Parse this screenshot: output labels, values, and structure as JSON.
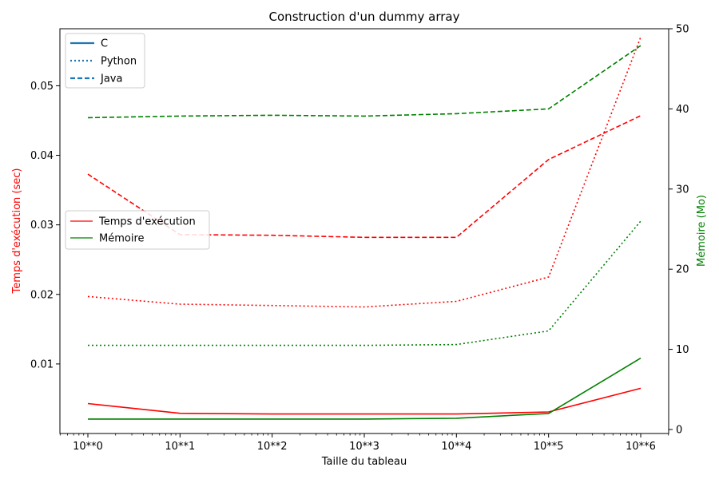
{
  "chart_data": {
    "type": "line",
    "title": "Construction d'un dummy array",
    "xlabel": "Taille du tableau",
    "ylabel_left": "Temps d'exécution (sec)",
    "ylabel_right": "Mémoire (Mo)",
    "x_scale": "log",
    "categories": [
      "10**0",
      "10**1",
      "10**2",
      "10**3",
      "10**4",
      "10**5",
      "10**6"
    ],
    "x": [
      1,
      10,
      100,
      1000,
      10000,
      100000,
      1000000
    ],
    "ylim_left": [
      0.0,
      0.0582
    ],
    "yticks_left": [
      0.01,
      0.02,
      0.03,
      0.04,
      0.05
    ],
    "ytick_labels_left": [
      "0.01",
      "0.02",
      "0.03",
      "0.04",
      "0.05"
    ],
    "ylim_right": [
      -0.5,
      50
    ],
    "yticks_right": [
      0,
      10,
      20,
      30,
      40,
      50
    ],
    "ytick_labels_right": [
      "0",
      "10",
      "20",
      "30",
      "40",
      "50"
    ],
    "colors": {
      "time": "#ff0000",
      "memory": "#008000",
      "legend_lines": "#1f77b4",
      "left_label": "#ff0000",
      "right_label": "#008000"
    },
    "legend_styles": {
      "placement": "upper-left",
      "entries": [
        {
          "label": "C",
          "style": "solid"
        },
        {
          "label": "Python",
          "style": "dotted"
        },
        {
          "label": "Java",
          "style": "dashed"
        }
      ]
    },
    "legend_metrics": {
      "placement": "center-left",
      "entries": [
        {
          "label": "Temps d'exécution",
          "color": "#ff0000"
        },
        {
          "label": "Mémoire",
          "color": "#008000"
        }
      ]
    },
    "series": [
      {
        "name": "C",
        "metric": "time",
        "axis": "left",
        "style": "solid",
        "values": [
          0.0043,
          0.0029,
          0.0028,
          0.0028,
          0.0028,
          0.0031,
          0.0065
        ]
      },
      {
        "name": "Python",
        "metric": "time",
        "axis": "left",
        "style": "dotted",
        "values": [
          0.0197,
          0.0186,
          0.0184,
          0.0182,
          0.019,
          0.0225,
          0.057
        ]
      },
      {
        "name": "Java",
        "metric": "time",
        "axis": "left",
        "style": "dashed",
        "values": [
          0.0373,
          0.0286,
          0.0285,
          0.0282,
          0.0282,
          0.0394,
          0.0457
        ]
      },
      {
        "name": "C",
        "metric": "memory",
        "axis": "right",
        "style": "solid",
        "values": [
          1.3,
          1.3,
          1.3,
          1.3,
          1.4,
          2.0,
          8.9
        ]
      },
      {
        "name": "Python",
        "metric": "memory",
        "axis": "right",
        "style": "dotted",
        "values": [
          10.5,
          10.5,
          10.5,
          10.5,
          10.6,
          12.3,
          26.0
        ]
      },
      {
        "name": "Java",
        "metric": "memory",
        "axis": "right",
        "style": "dashed",
        "values": [
          38.9,
          39.1,
          39.2,
          39.1,
          39.4,
          40.0,
          47.9
        ]
      }
    ]
  }
}
